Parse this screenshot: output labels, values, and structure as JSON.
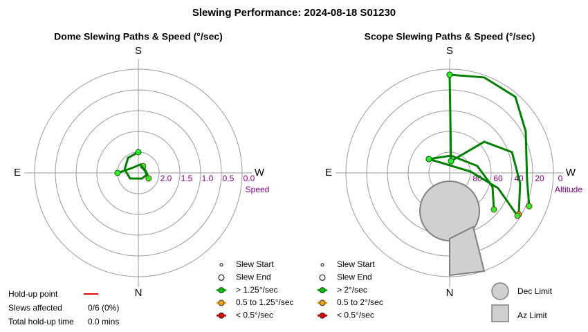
{
  "title": "Slewing Performance: 2024-08-18 S01230",
  "charts": [
    {
      "type": "polar",
      "title": "Dome Slewing Paths & Speed (°/sec)",
      "compass": {
        "S": "S",
        "N": "N",
        "E": "E",
        "W": "W"
      },
      "radial_label": "Speed",
      "rlim": [
        2.5,
        0.0
      ],
      "rticks": [
        {
          "value": 2.0,
          "label": "2.0"
        },
        {
          "value": 1.5,
          "label": "1.5"
        },
        {
          "value": 1.0,
          "label": "1.0"
        },
        {
          "value": 0.5,
          "label": "0.5"
        },
        {
          "value": 0.0,
          "label": "0.0"
        }
      ],
      "line_color": "#008000",
      "dot_color": "#33ee33",
      "slews": [
        {
          "az": [
            180,
            145.7,
            104,
            56.3,
            328,
            278.7,
            215
          ],
          "r": [
            2.0,
            2.06,
            2.16,
            2.26,
            2.34,
            2.28,
            2.3
          ]
        },
        {
          "az": [
            90,
            125,
            194,
            258.7,
            298.1
          ],
          "r": [
            2.0,
            2.3,
            2.29,
            2.33,
            2.22
          ]
        }
      ],
      "legend": [
        {
          "label": "Slew Start",
          "marker": "start"
        },
        {
          "label": "Slew End",
          "marker": "end"
        },
        {
          "label": "> 1.25°/sec",
          "color": "#00c000"
        },
        {
          "label": "0.5 to 1.25°/sec",
          "color": "#f0a000"
        },
        {
          "label": "< 0.5°/sec",
          "color": "#e00000"
        }
      ]
    },
    {
      "type": "polar",
      "title": "Scope Slewing Paths & Speed (°/sec)",
      "compass": {
        "S": "S",
        "N": "N",
        "E": "E",
        "W": "W"
      },
      "radial_label": "Altitude",
      "rlim": [
        100,
        0
      ],
      "rticks": [
        80,
        60,
        40,
        20,
        0
      ],
      "line_color": "#008000",
      "dot_color": "#33ee33",
      "slews": [
        {
          "az": [
            186.7,
            180
          ],
          "r": [
            88.6,
            5.3
          ]
        },
        {
          "az": [
            180,
            199.9,
            220.8,
            241.4,
            275.1,
            292.7
          ],
          "r": [
            5.3,
            2.1,
            3.1,
            16.5,
            25.1,
            16.9
          ]
        },
        {
          "az": [
            123.7,
            184.6,
            256,
            287.9,
            309.6
          ],
          "r": [
            75.9,
            83.3,
            72.5,
            56.6,
            44.6
          ]
        },
        {
          "az": [
            186.7,
            228,
            251.6,
            278.4,
            301
          ],
          "r": [
            88.6,
            55.1,
            36.7,
            31.3,
            22.3
          ],
          "end_color": "#f0a000"
        },
        {
          "az": [
            123.7,
            266.2,
            287.4,
            302.3
          ],
          "r": [
            75.9,
            79.9,
            51.1,
            22.7
          ]
        }
      ],
      "legend": [
        {
          "label": "Slew Start",
          "marker": "start"
        },
        {
          "label": "Slew End",
          "marker": "end"
        },
        {
          "label": "> 2°/sec",
          "color": "#00c000"
        },
        {
          "label": "0.5 to 2°/sec",
          "color": "#f0a000"
        },
        {
          "label": "< 0.5°/sec",
          "color": "#e00000"
        }
      ]
    }
  ],
  "limits_legend": {
    "dec": "Dec Limit",
    "az": "Az Limit"
  },
  "holdup": {
    "point_label": "Hold-up point",
    "affected_label": "Slews affected",
    "affected_value": "0/6 (0%)",
    "time_label": "Total hold-up time",
    "time_value": "0.0 mins"
  }
}
